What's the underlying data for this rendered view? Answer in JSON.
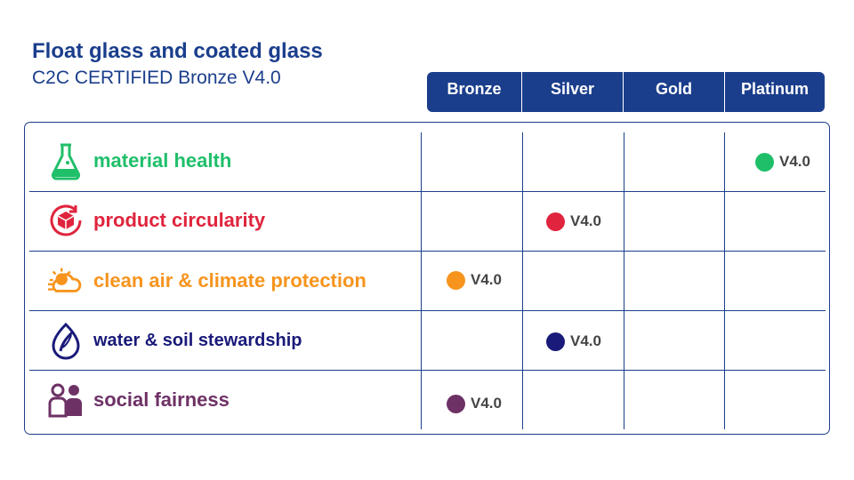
{
  "header": {
    "title": "Float glass and coated glass",
    "subtitle": "C2C CERTIFIED Bronze V4.0"
  },
  "levels": [
    "Bronze",
    "Silver",
    "Gold",
    "Platinum"
  ],
  "colors": {
    "brand_blue": "#1b3e8c",
    "material_health": "#1fbf6a",
    "product_circularity": "#e0243d",
    "clean_air": "#f7941d",
    "water_soil": "#1a1a7a",
    "social_fairness": "#6e3166"
  },
  "categories": [
    {
      "label": "material health",
      "icon": "flask-icon",
      "level": "Platinum",
      "version": "V4.0"
    },
    {
      "label": "product circularity",
      "icon": "recycle-cube-icon",
      "level": "Silver",
      "version": "V4.0"
    },
    {
      "label": "clean air & climate protection",
      "icon": "cloud-sun-icon",
      "level": "Bronze",
      "version": "V4.0"
    },
    {
      "label": "water & soil stewardship",
      "icon": "leaf-drop-icon",
      "level": "Silver",
      "version": "V4.0"
    },
    {
      "label": "social fairness",
      "icon": "people-icon",
      "level": "Bronze",
      "version": "V4.0"
    }
  ]
}
